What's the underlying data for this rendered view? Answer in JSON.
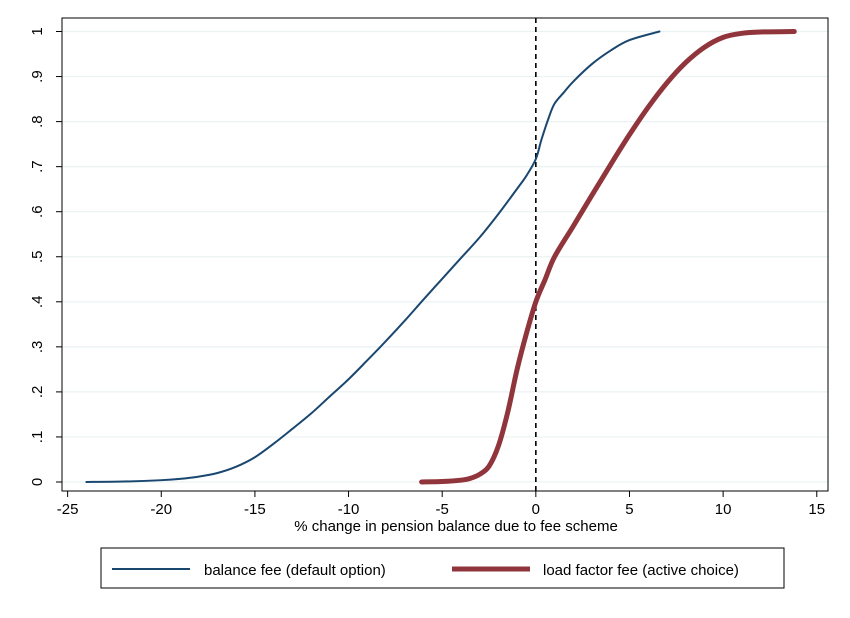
{
  "chart_data": {
    "type": "line",
    "title": "",
    "xlabel": "% change in pension balance due to fee scheme",
    "ylabel": "",
    "xlim": [
      -25.3,
      15.6
    ],
    "ylim": [
      -0.02,
      1.03
    ],
    "x_ticks": [
      -25,
      -20,
      -15,
      -10,
      -5,
      0,
      5,
      10,
      15
    ],
    "x_tick_labels": [
      "-25",
      "-20",
      "-15",
      "-10",
      "-5",
      "0",
      "5",
      "10",
      "15"
    ],
    "y_ticks": [
      0,
      0.1,
      0.2,
      0.3,
      0.4,
      0.5,
      0.6,
      0.7,
      0.8,
      0.9,
      1
    ],
    "y_tick_labels": [
      "0",
      ".1",
      ".2",
      ".3",
      ".4",
      ".5",
      ".6",
      ".7",
      ".8",
      ".9",
      "1"
    ],
    "grid": "horizontal",
    "reference_line": {
      "x": 0,
      "style": "dashed",
      "color": "#000000"
    },
    "legend": {
      "placement": "bottom"
    },
    "series": [
      {
        "name": "balance fee (default option)",
        "color": "#1a476f",
        "x": [
          -24,
          -22,
          -20,
          -19,
          -18,
          -17,
          -16,
          -15,
          -14,
          -13,
          -12,
          -11,
          -10,
          -9,
          -8,
          -7,
          -6,
          -5,
          -4,
          -3,
          -2,
          -1,
          -0.5,
          0,
          0.3,
          0.7,
          1,
          1.5,
          2,
          3,
          4,
          5,
          6.6
        ],
        "y": [
          0,
          0.001,
          0.004,
          0.007,
          0.012,
          0.02,
          0.034,
          0.055,
          0.085,
          0.118,
          0.152,
          0.19,
          0.228,
          0.27,
          0.313,
          0.358,
          0.405,
          0.451,
          0.497,
          0.543,
          0.595,
          0.651,
          0.68,
          0.717,
          0.76,
          0.81,
          0.84,
          0.865,
          0.889,
          0.928,
          0.958,
          0.981,
          1.0
        ]
      },
      {
        "name": "load factor fee (active choice)",
        "color": "#90353b",
        "x": [
          -6.1,
          -5,
          -4,
          -3.5,
          -3,
          -2.5,
          -2,
          -1.5,
          -1,
          -0.5,
          0,
          0.5,
          1,
          2,
          3,
          4,
          5,
          6,
          7,
          8,
          9,
          10,
          11,
          12,
          13.8
        ],
        "y": [
          0,
          0.001,
          0.004,
          0.008,
          0.017,
          0.035,
          0.08,
          0.155,
          0.25,
          0.33,
          0.4,
          0.45,
          0.5,
          0.568,
          0.637,
          0.705,
          0.771,
          0.832,
          0.886,
          0.931,
          0.965,
          0.987,
          0.996,
          0.999,
          1.0
        ]
      }
    ]
  }
}
